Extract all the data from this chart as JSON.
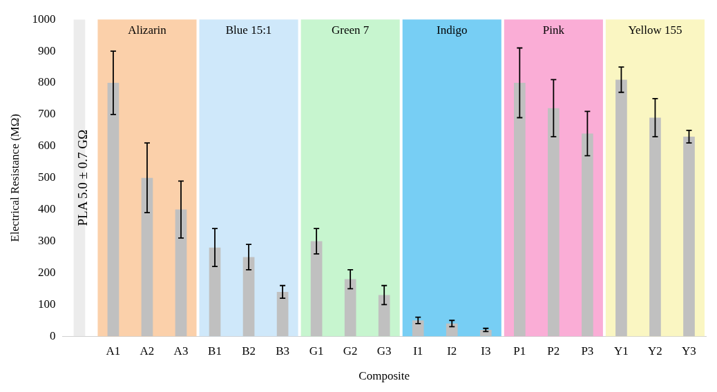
{
  "chart_data": {
    "type": "bar",
    "xlabel": "Composite",
    "ylabel": "Electrical Resistance (MΩ)",
    "categories": [
      null,
      "A1",
      "A2",
      "A3",
      "B1",
      "B2",
      "B3",
      "G1",
      "G2",
      "G3",
      "I1",
      "I2",
      "I3",
      "P1",
      "P2",
      "P3",
      "Y1",
      "Y2",
      "Y3"
    ],
    "values": [
      1000,
      800,
      500,
      400,
      280,
      250,
      140,
      300,
      180,
      130,
      50,
      40,
      20,
      800,
      720,
      640,
      810,
      690,
      630
    ],
    "colors": [
      "#ececec",
      "#c0c0c0",
      "#c0c0c0",
      "#c0c0c0",
      "#c0c0c0",
      "#c0c0c0",
      "#c0c0c0",
      "#c0c0c0",
      "#c0c0c0",
      "#c0c0c0",
      "#c0c0c0",
      "#c0c0c0",
      "#c0c0c0",
      "#c0c0c0",
      "#c0c0c0",
      "#c0c0c0",
      "#c0c0c0",
      "#c0c0c0",
      "#c0c0c0"
    ],
    "errors": [
      null,
      100,
      110,
      90,
      60,
      40,
      20,
      40,
      30,
      30,
      10,
      10,
      5,
      110,
      90,
      70,
      40,
      60,
      20
    ],
    "ylim": [
      0,
      1000
    ],
    "yticks": [
      0,
      100,
      200,
      300,
      400,
      500,
      600,
      700,
      800,
      900,
      1000
    ],
    "bands": [
      {
        "axis": "x",
        "from": "A1",
        "to": "A3",
        "label": "Alizarin",
        "color": "#f9c08e"
      },
      {
        "axis": "x",
        "from": "B1",
        "to": "B3",
        "label": "Blue 15:1",
        "color": "#bfe0f8"
      },
      {
        "axis": "x",
        "from": "G1",
        "to": "G3",
        "label": "Green 7",
        "color": "#b4f2bf"
      },
      {
        "axis": "x",
        "from": "I1",
        "to": "I3",
        "label": "Indigo",
        "color": "#49bdf0"
      },
      {
        "axis": "x",
        "from": "P1",
        "to": "P3",
        "label": "Pink",
        "color": "#f891c8"
      },
      {
        "axis": "x",
        "from": "Y1",
        "to": "Y3",
        "label": "Yellow 155",
        "color": "#f8f3ae"
      }
    ],
    "annotations": [
      "PLA 5.0 ± 0.7 GΩ"
    ],
    "grid": false,
    "legend": false
  }
}
